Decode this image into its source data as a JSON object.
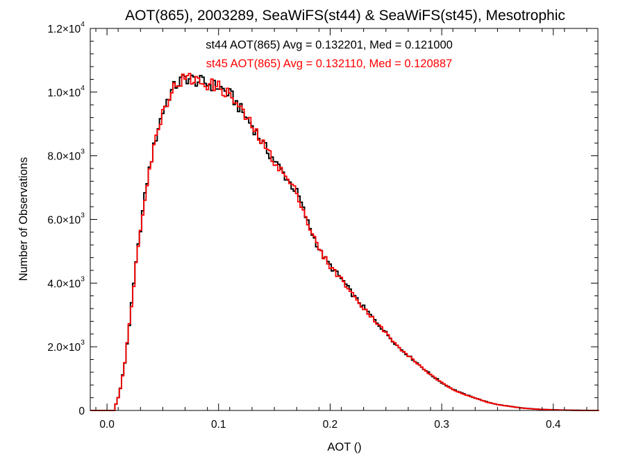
{
  "chart_data": {
    "type": "histogram",
    "title": "AOT(865), 2003289, SeaWiFS(st44) & SeaWiFS(st45), Mesotrophic",
    "xlabel": "AOT ()",
    "ylabel": "Number of Observations",
    "xlim": [
      -0.015,
      0.44
    ],
    "ylim": [
      0,
      12000
    ],
    "x_ticks": [
      0.0,
      0.1,
      0.2,
      0.3,
      0.4
    ],
    "x_tick_labels": [
      "0.0",
      "0.1",
      "0.2",
      "0.3",
      "0.4"
    ],
    "y_ticks": [
      0,
      2000,
      4000,
      6000,
      8000,
      10000,
      12000
    ],
    "y_tick_labels": [
      {
        "mantissa": "0",
        "exponent": ""
      },
      {
        "mantissa": "2.0×10",
        "exponent": "3"
      },
      {
        "mantissa": "4.0×10",
        "exponent": "3"
      },
      {
        "mantissa": "6.0×10",
        "exponent": "3"
      },
      {
        "mantissa": "8.0×10",
        "exponent": "3"
      },
      {
        "mantissa": "1.0×10",
        "exponent": "4"
      },
      {
        "mantissa": "1.2×10",
        "exponent": "4"
      }
    ],
    "bin_width": 0.002,
    "bins_x": [
      -0.015,
      0.005,
      0.01,
      0.015,
      0.02,
      0.025,
      0.03,
      0.035,
      0.04,
      0.045,
      0.05,
      0.055,
      0.06,
      0.065,
      0.07,
      0.075,
      0.08,
      0.085,
      0.09,
      0.095,
      0.1,
      0.11,
      0.12,
      0.13,
      0.14,
      0.15,
      0.16,
      0.17,
      0.18,
      0.19,
      0.2,
      0.21,
      0.22,
      0.23,
      0.24,
      0.25,
      0.26,
      0.27,
      0.28,
      0.29,
      0.3,
      0.31,
      0.32,
      0.33,
      0.34,
      0.35,
      0.36,
      0.37,
      0.38,
      0.39,
      0.4,
      0.41,
      0.42,
      0.43,
      0.44
    ],
    "series": [
      {
        "name": "st44",
        "color": "#000000",
        "stats_text": "st44 AOT(865) Avg = 0.132201, Med = 0.121000",
        "values": [
          0,
          0,
          500,
          1500,
          3000,
          4600,
          6000,
          7200,
          8100,
          8900,
          9500,
          9900,
          10200,
          10350,
          10450,
          10400,
          10350,
          10300,
          10250,
          10200,
          10150,
          9900,
          9400,
          8900,
          8300,
          7800,
          7300,
          6800,
          5800,
          5000,
          4500,
          4100,
          3600,
          3200,
          2800,
          2400,
          2000,
          1700,
          1400,
          1100,
          850,
          650,
          500,
          380,
          260,
          180,
          130,
          80,
          50,
          30,
          20,
          10,
          5,
          0,
          0
        ]
      },
      {
        "name": "st45",
        "color": "#ff0000",
        "stats_text": "st45 AOT(865) Avg = 0.132110, Med = 0.120887",
        "values": [
          0,
          0,
          500,
          1500,
          3000,
          4600,
          6000,
          7200,
          8100,
          8900,
          9500,
          9900,
          10200,
          10350,
          10450,
          10400,
          10350,
          10300,
          10250,
          10200,
          10150,
          9880,
          9380,
          8880,
          8290,
          7790,
          7290,
          6790,
          5790,
          4990,
          4490,
          4090,
          3590,
          3190,
          2790,
          2390,
          1990,
          1690,
          1390,
          1090,
          845,
          645,
          495,
          375,
          258,
          178,
          128,
          79,
          49,
          29,
          19,
          9,
          4,
          0,
          0
        ]
      }
    ],
    "grid": false,
    "legend": "top-center text"
  }
}
